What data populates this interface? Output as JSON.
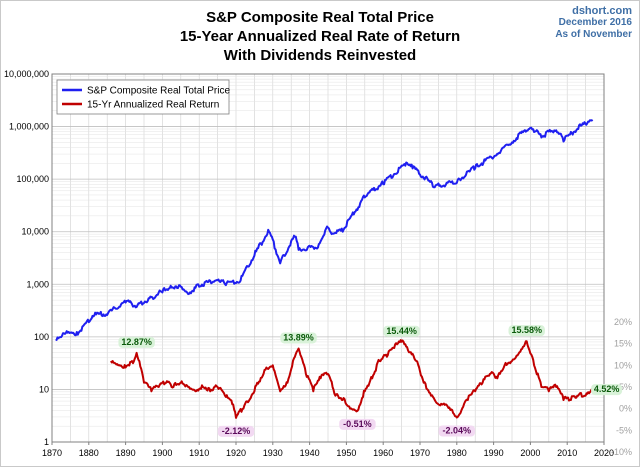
{
  "title_lines": [
    "S&P Composite Real Total Price",
    "15-Year Annualized Real Rate of Return",
    "With Dividends Reinvested"
  ],
  "source": {
    "site": "dshort.com",
    "date": "December 2016",
    "note": "As of November"
  },
  "colors": {
    "price_series": "#1f1ff0",
    "return_series": "#c00000",
    "positive_label_bg": "#d9f2d9",
    "negative_label_bg": "#f2d9f2",
    "grid": "#d0d0d0"
  },
  "chart_data": {
    "type": "line",
    "title": "S&P Composite Real Total Price / 15-Year Annualized Real Rate of Return / With Dividends Reinvested",
    "xlim": [
      1870,
      2020
    ],
    "x_ticks": [
      "1870",
      "1880",
      "1890",
      "1900",
      "1910",
      "1920",
      "1930",
      "1940",
      "1950",
      "1960",
      "1970",
      "1980",
      "1990",
      "2000",
      "2010",
      "2020"
    ],
    "y_left": {
      "scale": "log",
      "lim": [
        1,
        10000000
      ],
      "ticks": [
        1,
        10,
        100,
        1000,
        10000,
        100000,
        1000000,
        10000000
      ],
      "tick_labels": [
        "1",
        "10",
        "100",
        "1,000",
        "10,000",
        "100,000",
        "1,000,000",
        "10,000,000"
      ]
    },
    "y_right": {
      "scale": "linear",
      "lim": [
        -10,
        20
      ],
      "ticks": [
        -10,
        -5,
        0,
        5,
        10,
        15,
        20
      ],
      "tick_labels": [
        "-10%",
        "-5%",
        "0%",
        "5%",
        "10%",
        "15%",
        "20%"
      ]
    },
    "grid": true,
    "legend": "top-left",
    "series": [
      {
        "name": "S&P Composite Real Total Price",
        "axis": "left",
        "x": [
          1871,
          1875,
          1877,
          1880,
          1881,
          1885,
          1890,
          1893,
          1896,
          1900,
          1902,
          1905,
          1907,
          1910,
          1915,
          1917,
          1921,
          1925,
          1929,
          1932,
          1936,
          1937,
          1942,
          1945,
          1946,
          1949,
          1955,
          1960,
          1966,
          1968,
          1974,
          1980,
          1985,
          1990,
          1995,
          2000,
          2003,
          2007,
          2009,
          2013,
          2016.9
        ],
        "values": [
          90,
          120,
          110,
          190,
          250,
          260,
          450,
          370,
          480,
          700,
          850,
          900,
          650,
          900,
          1200,
          1000,
          1100,
          3500,
          10000,
          2500,
          8000,
          4500,
          4800,
          12000,
          9000,
          10000,
          45000,
          80000,
          180000,
          160000,
          70000,
          85000,
          160000,
          260000,
          500000,
          950000,
          620000,
          850000,
          520000,
          900000,
          1350000
        ]
      },
      {
        "name": "15-Yr Annualized Real Return",
        "axis": "right",
        "x": [
          1886,
          1888,
          1890,
          1892,
          1893,
          1895,
          1897,
          1899,
          1901,
          1903,
          1905,
          1907,
          1909,
          1911,
          1913,
          1915,
          1917,
          1919,
          1920,
          1922,
          1925,
          1928,
          1930,
          1932,
          1934,
          1936,
          1937,
          1939,
          1941,
          1943,
          1945,
          1947,
          1949,
          1951,
          1953,
          1955,
          1957,
          1959,
          1961,
          1963,
          1965,
          1967,
          1969,
          1971,
          1973,
          1975,
          1977,
          1979,
          1980,
          1981,
          1983,
          1985,
          1987,
          1989,
          1991,
          1993,
          1995,
          1997,
          1999,
          2001,
          2003,
          2005,
          2007,
          2009,
          2011,
          2013,
          2015,
          2016.9
        ],
        "values": [
          11,
          10,
          9.5,
          10.5,
          12.87,
          6,
          4,
          5,
          6,
          5,
          6,
          5,
          4,
          5,
          4,
          5,
          3,
          1,
          -2.12,
          0,
          4,
          9,
          10,
          4,
          6,
          12,
          13.89,
          8,
          4,
          7,
          8,
          3,
          2,
          0,
          -0.51,
          4,
          7,
          11,
          12,
          14,
          15.44,
          13,
          11,
          6,
          3,
          1,
          1,
          -1,
          -2.04,
          -1,
          2,
          4,
          6,
          8,
          7,
          10,
          11,
          13,
          15.58,
          10,
          5,
          4,
          5,
          2,
          2,
          3,
          3,
          4.52
        ]
      }
    ],
    "annotations": [
      {
        "text": "12.87%",
        "x": 1893,
        "value": 12.87,
        "sign": "positive"
      },
      {
        "text": "13.89%",
        "x": 1937,
        "value": 13.89,
        "sign": "positive"
      },
      {
        "text": "15.44%",
        "x": 1965,
        "value": 15.44,
        "sign": "positive"
      },
      {
        "text": "15.58%",
        "x": 1999,
        "value": 15.58,
        "sign": "positive"
      },
      {
        "text": "4.52%",
        "x": 2016.9,
        "value": 4.52,
        "sign": "positive"
      },
      {
        "text": "-2.12%",
        "x": 1920,
        "value": -2.12,
        "sign": "negative"
      },
      {
        "text": "-0.51%",
        "x": 1953,
        "value": -0.51,
        "sign": "negative"
      },
      {
        "text": "-2.04%",
        "x": 1980,
        "value": -2.04,
        "sign": "negative"
      }
    ]
  }
}
